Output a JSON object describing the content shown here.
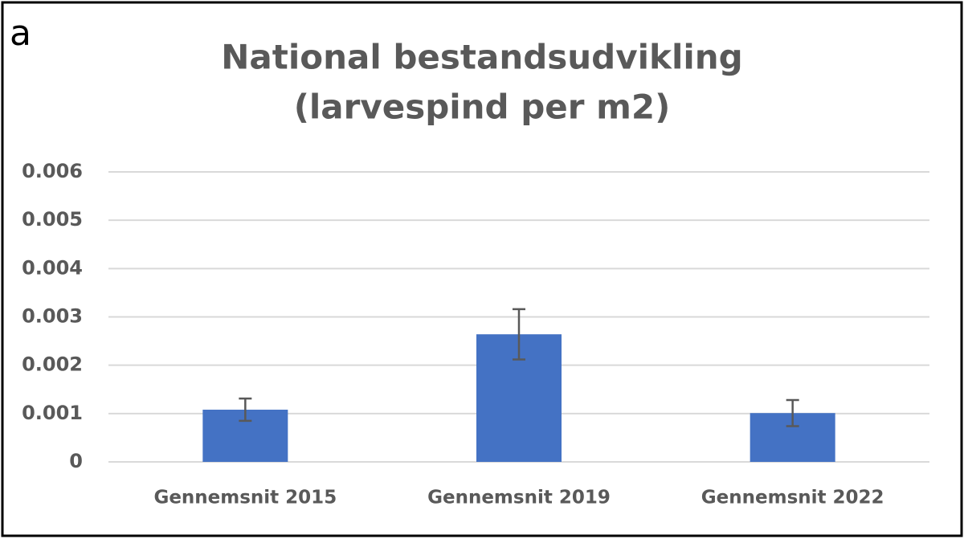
{
  "chart_data": {
    "type": "bar",
    "panel_label": "a",
    "title": [
      "National bestandsudvikling",
      "(larvespind per m2)"
    ],
    "categories": [
      "Gennemsnit 2015",
      "Gennemsnit 2019",
      "Gennemsnit 2022"
    ],
    "values": [
      0.00108,
      0.00264,
      0.00101
    ],
    "errors": [
      0.00023,
      0.00052,
      0.00027
    ],
    "color": "#4472c4",
    "ylim": [
      0,
      0.006
    ],
    "yticks": [
      0,
      0.001,
      0.002,
      0.003,
      0.004,
      0.005,
      0.006
    ],
    "grid": true
  }
}
